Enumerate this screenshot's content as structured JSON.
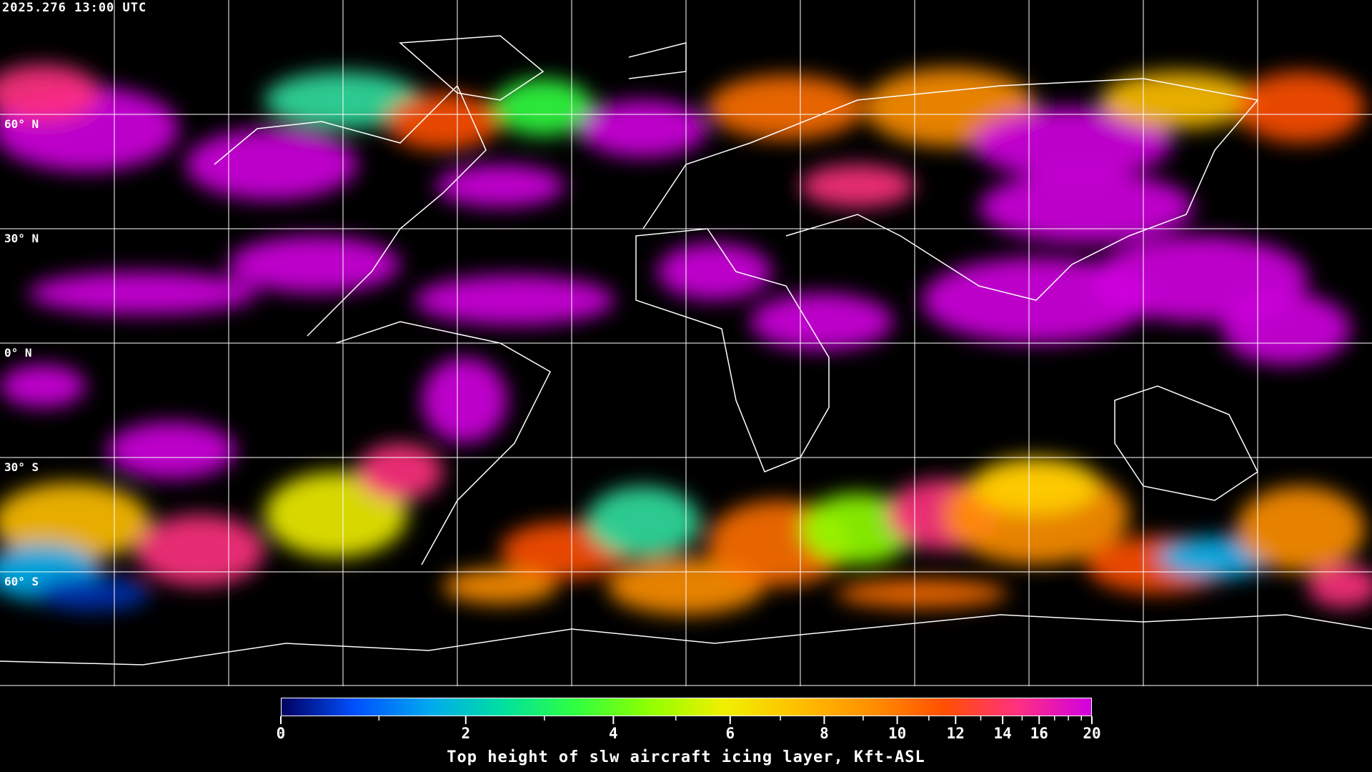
{
  "timestamp": "2025.276 13:00 UTC",
  "map": {
    "projection": "equirectangular",
    "background": "#000000",
    "coastline_color": "#ffffff",
    "gridline_color": "#ffffff",
    "lat_labels": [
      "60° N",
      "30° N",
      "0° N",
      "30° S",
      "60° S"
    ]
  },
  "colorbar": {
    "title": "Top height of slw aircraft icing layer, Kft-ASL",
    "range": [
      0,
      20
    ],
    "tick_labels": [
      "0",
      "2",
      "4",
      "6",
      "8",
      "10",
      "12",
      "14",
      "16",
      "20"
    ],
    "minor_ticks": [
      1,
      3,
      5,
      7,
      9,
      11,
      13,
      15,
      17,
      18,
      19
    ],
    "colors": [
      "#000060",
      "#0050ff",
      "#00a8f0",
      "#00e0a0",
      "#30ff40",
      "#90ff00",
      "#f0f000",
      "#ffc000",
      "#ff9000",
      "#ff5000",
      "#ff3080",
      "#d000e0"
    ]
  }
}
